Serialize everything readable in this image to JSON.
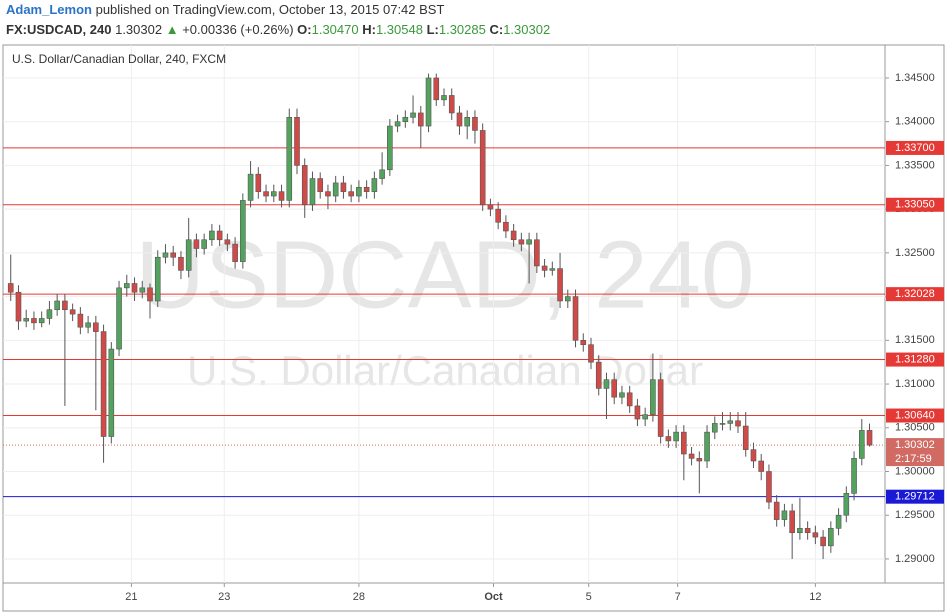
{
  "header": {
    "author": "Adam_Lemon",
    "published": "published on TradingView.com, October 13, 2015 07:42 BST",
    "symbol": "FX:USDCAD, 240",
    "last": "1.30302",
    "arrow": "▲",
    "change": "+0.00336 (+0.26%)",
    "ohlc": [
      {
        "label": "O:",
        "value": "1.30470"
      },
      {
        "label": "H:",
        "value": "1.30548"
      },
      {
        "label": "L:",
        "value": "1.30285"
      },
      {
        "label": "C:",
        "value": "1.30302"
      }
    ]
  },
  "chart_data": {
    "type": "candlestick",
    "title": "U.S. Dollar/Canadian Dollar, 240, FXCM",
    "watermark": [
      "USDCAD, 240",
      "U.S. Dollar/Canadian Dollar"
    ],
    "up_color": "#53a35e",
    "down_color": "#d04b48",
    "xlim": [
      -1,
      113
    ],
    "ylim": [
      1.28725,
      1.34877
    ],
    "xticks": [
      {
        "value": 15.6,
        "label": "21"
      },
      {
        "value": 27.6,
        "label": "23"
      },
      {
        "value": 45,
        "label": "28"
      },
      {
        "value": 62.4,
        "label": "Oct"
      },
      {
        "value": 74.7,
        "label": "5"
      },
      {
        "value": 86.2,
        "label": "7"
      },
      {
        "value": 104,
        "label": "12"
      }
    ],
    "yticks": [
      {
        "value": 1.29,
        "label": "1.29000"
      },
      {
        "value": 1.295,
        "label": "1.29500"
      },
      {
        "value": 1.3,
        "label": "1.30000"
      },
      {
        "value": 1.305,
        "label": "1.30500"
      },
      {
        "value": 1.31,
        "label": "1.31000"
      },
      {
        "value": 1.315,
        "label": "1.31500"
      },
      {
        "value": 1.32,
        "label": "1.32000"
      },
      {
        "value": 1.325,
        "label": "1.32500"
      },
      {
        "value": 1.33,
        "label": "1.33000"
      },
      {
        "value": 1.335,
        "label": "1.33500"
      },
      {
        "value": 1.34,
        "label": "1.34000"
      },
      {
        "value": 1.345,
        "label": "1.34500"
      }
    ],
    "grid": true,
    "open": [
      1.3215,
      1.3205,
      1.3172,
      1.3175,
      1.317,
      1.3175,
      1.3185,
      1.3195,
      1.3185,
      1.318,
      1.3165,
      1.317,
      1.316,
      1.304,
      1.314,
      1.321,
      1.3215,
      1.3205,
      1.321,
      1.3195,
      1.3245,
      1.325,
      1.3245,
      1.323,
      1.3265,
      1.3255,
      1.3265,
      1.3275,
      1.3265,
      1.326,
      1.324,
      1.331,
      1.334,
      1.332,
      1.3315,
      1.332,
      1.331,
      1.3405,
      1.335,
      1.3305,
      1.3335,
      1.332,
      1.3315,
      1.333,
      1.332,
      1.3315,
      1.3325,
      1.332,
      1.3335,
      1.3345,
      1.3395,
      1.34,
      1.3405,
      1.341,
      1.3395,
      1.345,
      1.3425,
      1.343,
      1.341,
      1.3395,
      1.3405,
      1.339,
      1.3305,
      1.33,
      1.3285,
      1.3275,
      1.3265,
      1.326,
      1.3265,
      1.3235,
      1.323,
      1.3232,
      1.3195,
      1.32,
      1.315,
      1.3145,
      1.3125,
      1.3095,
      1.3105,
      1.3085,
      1.309,
      1.3075,
      1.306,
      1.3065,
      1.3105,
      1.304,
      1.3035,
      1.3045,
      1.302,
      1.3015,
      1.3012,
      1.3045,
      1.3055,
      1.3055,
      1.3058,
      1.3052,
      1.3025,
      1.3012,
      1.3,
      1.2965,
      1.2945,
      1.2955,
      1.293,
      1.2935,
      1.293,
      1.2925,
      1.2915,
      1.2935,
      1.295,
      1.2975,
      1.3015,
      1.3047
    ],
    "high": [
      1.3248,
      1.3213,
      1.3185,
      1.3183,
      1.3183,
      1.3195,
      1.3203,
      1.3203,
      1.3192,
      1.3188,
      1.3178,
      1.3178,
      1.3168,
      1.3148,
      1.3218,
      1.3225,
      1.3222,
      1.3218,
      1.3215,
      1.3253,
      1.326,
      1.3258,
      1.3252,
      1.329,
      1.3272,
      1.3272,
      1.3283,
      1.3282,
      1.3272,
      1.3268,
      1.3318,
      1.3355,
      1.3348,
      1.3328,
      1.3328,
      1.3328,
      1.3415,
      1.3415,
      1.3358,
      1.3343,
      1.3342,
      1.3328,
      1.3338,
      1.3338,
      1.3328,
      1.3333,
      1.3333,
      1.3343,
      1.3365,
      1.3403,
      1.3408,
      1.3413,
      1.343,
      1.3418,
      1.3455,
      1.3455,
      1.3438,
      1.3438,
      1.3418,
      1.3413,
      1.3413,
      1.3398,
      1.3312,
      1.3308,
      1.3293,
      1.3283,
      1.3273,
      1.3273,
      1.3273,
      1.3243,
      1.324,
      1.325,
      1.3208,
      1.3208,
      1.3158,
      1.3153,
      1.3133,
      1.3113,
      1.3113,
      1.3098,
      1.3098,
      1.3083,
      1.3073,
      1.3135,
      1.3113,
      1.3048,
      1.3053,
      1.3053,
      1.3028,
      1.3023,
      1.3053,
      1.3063,
      1.3068,
      1.3068,
      1.3068,
      1.3068,
      1.3033,
      1.302,
      1.3008,
      1.2973,
      1.2963,
      1.2963,
      1.297,
      1.2943,
      1.2938,
      1.2933,
      1.2943,
      1.2958,
      1.2983,
      1.3023,
      1.306,
      1.30548
    ],
    "low": [
      1.3195,
      1.3162,
      1.3165,
      1.3162,
      1.3165,
      1.3168,
      1.3178,
      1.3075,
      1.3172,
      1.3157,
      1.3158,
      1.307,
      1.301,
      1.3032,
      1.3132,
      1.32,
      1.3195,
      1.3198,
      1.3175,
      1.3188,
      1.3238,
      1.3235,
      1.322,
      1.3222,
      1.3245,
      1.3248,
      1.3258,
      1.3258,
      1.3252,
      1.3232,
      1.3232,
      1.3302,
      1.3312,
      1.3308,
      1.3308,
      1.3302,
      1.3302,
      1.334,
      1.329,
      1.3298,
      1.3312,
      1.33,
      1.3308,
      1.3312,
      1.3308,
      1.3308,
      1.3312,
      1.3312,
      1.3328,
      1.3338,
      1.3388,
      1.3393,
      1.3398,
      1.337,
      1.3388,
      1.3418,
      1.3418,
      1.3402,
      1.3385,
      1.338,
      1.3375,
      1.3298,
      1.3292,
      1.3277,
      1.3267,
      1.3257,
      1.3252,
      1.3215,
      1.3227,
      1.3222,
      1.3224,
      1.3187,
      1.3187,
      1.3142,
      1.3137,
      1.3117,
      1.3087,
      1.306,
      1.3077,
      1.3077,
      1.3067,
      1.3052,
      1.3052,
      1.3057,
      1.3032,
      1.3027,
      1.3027,
      1.299,
      1.3007,
      1.2975,
      1.3004,
      1.3037,
      1.3047,
      1.3047,
      1.3044,
      1.3017,
      1.3004,
      1.299,
      1.2957,
      1.2937,
      1.2937,
      1.29,
      1.2922,
      1.2922,
      1.2917,
      1.29,
      1.2907,
      1.2927,
      1.2942,
      1.2967,
      1.3007,
      1.30285
    ],
    "close": [
      1.3205,
      1.3172,
      1.3175,
      1.317,
      1.3175,
      1.3185,
      1.3195,
      1.3185,
      1.318,
      1.3165,
      1.317,
      1.316,
      1.304,
      1.314,
      1.321,
      1.3215,
      1.3205,
      1.321,
      1.3195,
      1.3245,
      1.325,
      1.3245,
      1.323,
      1.3265,
      1.3255,
      1.3265,
      1.3275,
      1.3265,
      1.326,
      1.324,
      1.331,
      1.334,
      1.332,
      1.3315,
      1.332,
      1.331,
      1.3405,
      1.335,
      1.3305,
      1.3335,
      1.332,
      1.3315,
      1.333,
      1.332,
      1.3315,
      1.3325,
      1.332,
      1.3335,
      1.3345,
      1.3395,
      1.34,
      1.3405,
      1.341,
      1.3395,
      1.345,
      1.3425,
      1.343,
      1.341,
      1.3395,
      1.3405,
      1.339,
      1.3305,
      1.33,
      1.3285,
      1.3275,
      1.3265,
      1.326,
      1.3265,
      1.3235,
      1.323,
      1.3232,
      1.3195,
      1.32,
      1.315,
      1.3145,
      1.3125,
      1.3095,
      1.3105,
      1.3085,
      1.309,
      1.3075,
      1.306,
      1.3065,
      1.3105,
      1.304,
      1.3035,
      1.3045,
      1.302,
      1.3015,
      1.3012,
      1.3045,
      1.3055,
      1.3055,
      1.3058,
      1.3052,
      1.3025,
      1.3012,
      1.3,
      1.2965,
      1.2945,
      1.2955,
      1.293,
      1.2935,
      1.293,
      1.2925,
      1.2915,
      1.2935,
      1.295,
      1.2975,
      1.3015,
      1.3047,
      1.30302
    ],
    "levels": [
      {
        "value": 1.337,
        "label": "1.33700",
        "color": "#e53935"
      },
      {
        "value": 1.3305,
        "label": "1.33050",
        "color": "#e53935"
      },
      {
        "value": 1.32028,
        "label": "1.32028",
        "color": "#e53935"
      },
      {
        "value": 1.3128,
        "label": "1.31280",
        "color": "#e53935"
      },
      {
        "value": 1.3064,
        "label": "1.30640",
        "color": "#e53935"
      },
      {
        "value": 1.29712,
        "label": "1.29712",
        "color": "#1a1ad6"
      }
    ],
    "last_price": {
      "value": 1.30302,
      "label": "1.30302",
      "countdown": "2:17:59",
      "color": "#d06a63"
    }
  }
}
